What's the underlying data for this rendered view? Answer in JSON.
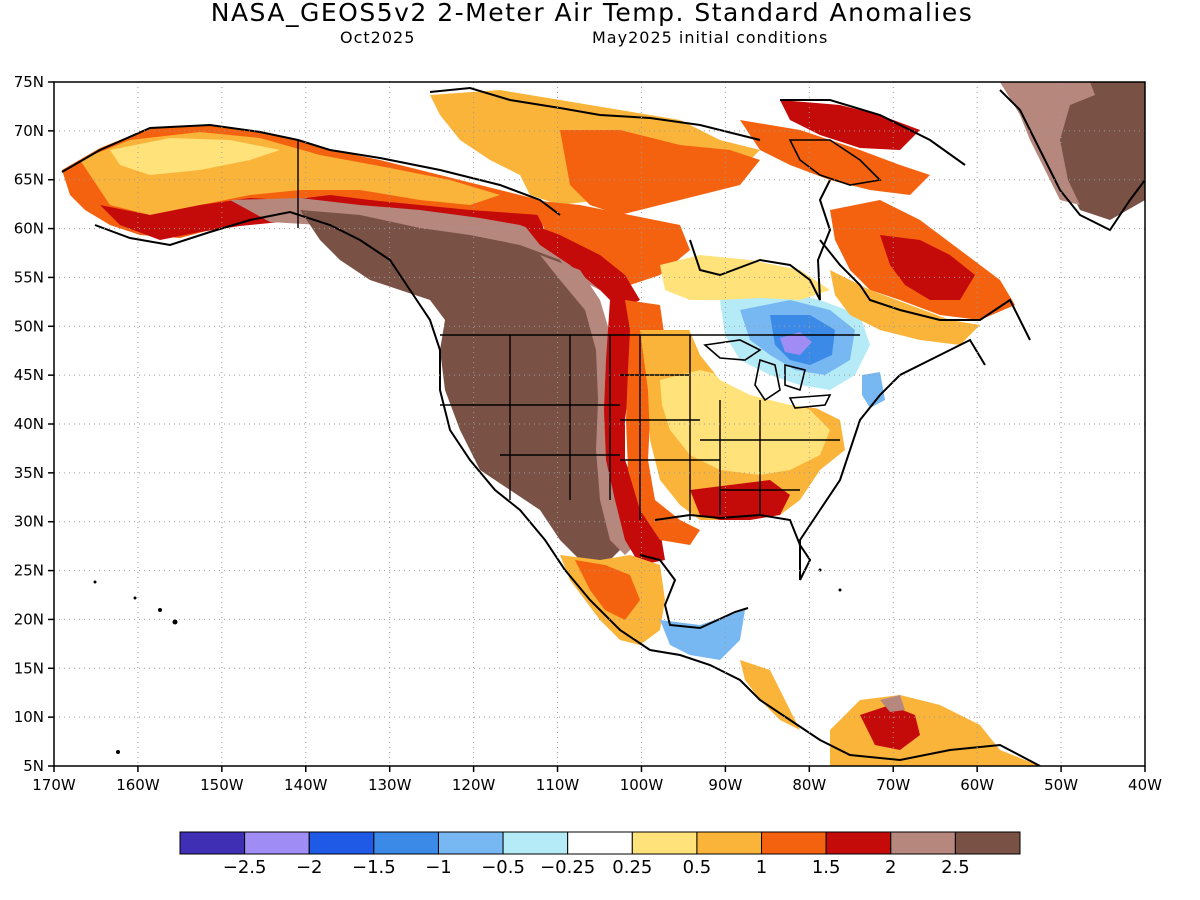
{
  "title": "NASA_GEOS5v2 2-Meter Air Temp. Standard Anomalies",
  "subtitle_left": "Oct2025",
  "subtitle_right": "May2025 initial conditions",
  "map": {
    "lon_range": [
      -170,
      -40
    ],
    "lat_range": [
      5,
      75
    ],
    "lat_ticks": [
      "75N",
      "70N",
      "65N",
      "60N",
      "55N",
      "50N",
      "45N",
      "40N",
      "35N",
      "30N",
      "25N",
      "20N",
      "15N",
      "10N",
      "5N"
    ],
    "lon_ticks": [
      "170W",
      "160W",
      "150W",
      "140W",
      "130W",
      "120W",
      "110W",
      "100W",
      "90W",
      "80W",
      "70W",
      "60W",
      "50W",
      "40W"
    ],
    "grid": "dotted"
  },
  "colorbar": {
    "colors": [
      "#3f2fb5",
      "#a08cf5",
      "#1f5ae6",
      "#3c8ae8",
      "#78b8f2",
      "#b4ebf7",
      "#ffffff",
      "#ffe27a",
      "#fbb43a",
      "#f5620f",
      "#c50a0a",
      "#b5877d",
      "#7a5145"
    ],
    "labels": [
      "−2.5",
      "−2",
      "−1.5",
      "−1",
      "−0.5",
      "−0.25",
      "0.25",
      "0.5",
      "1",
      "1.5",
      "2",
      "2.5"
    ]
  }
}
